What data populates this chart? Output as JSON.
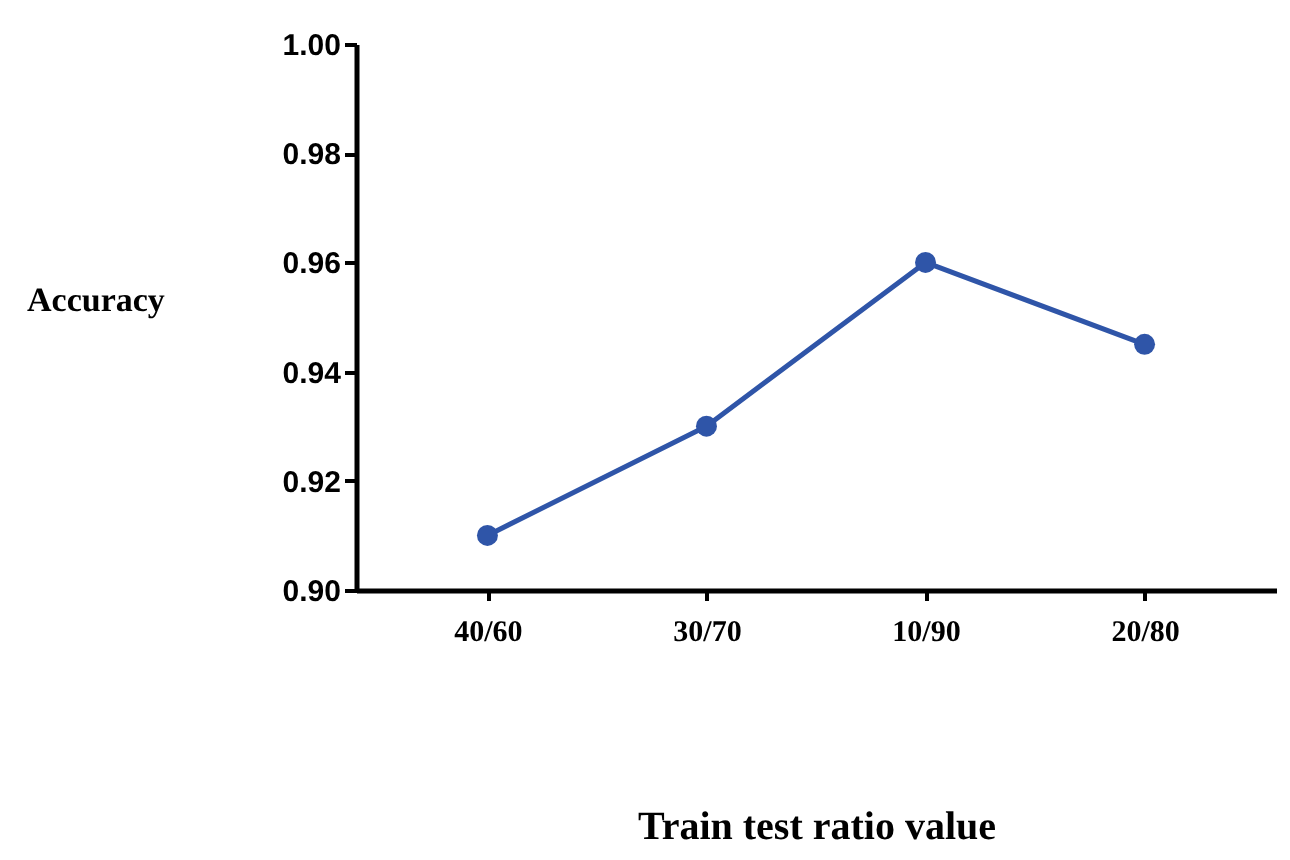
{
  "chart_data": {
    "type": "line",
    "xlabel": "Train test ratio value",
    "ylabel": "Accuracy",
    "categories": [
      "40/60",
      "30/70",
      "10/90",
      "20/80"
    ],
    "series": [
      {
        "color": "#2f55a8",
        "values": [
          0.91,
          0.93,
          0.96,
          0.945
        ]
      }
    ],
    "ylim": [
      0.9,
      1.0
    ],
    "yticks": [
      {
        "value": 0.9,
        "label": "0.90"
      },
      {
        "value": 0.92,
        "label": "0.92"
      },
      {
        "value": 0.94,
        "label": "0.94"
      },
      {
        "value": 0.96,
        "label": "0.96"
      },
      {
        "value": 0.98,
        "label": "0.98"
      },
      {
        "value": 1.0,
        "label": "1.00"
      }
    ],
    "grid": false,
    "marker": "circle",
    "line_style": "solid",
    "legend": false
  }
}
